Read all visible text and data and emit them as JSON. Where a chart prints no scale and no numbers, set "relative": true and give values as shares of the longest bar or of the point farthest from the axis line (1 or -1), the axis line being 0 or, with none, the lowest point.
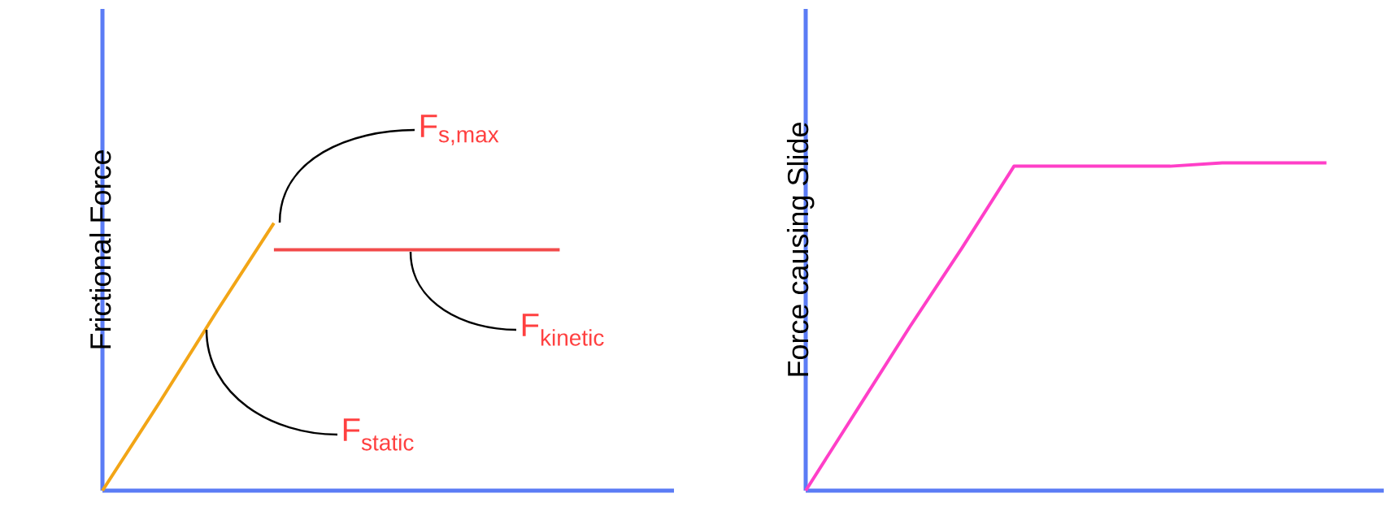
{
  "chart_data": [
    {
      "type": "line",
      "relative": true,
      "ylabel": "Frictional Force",
      "categories": [
        null,
        null,
        null,
        null,
        null,
        null,
        null,
        null,
        null
      ],
      "series": [
        {
          "color": "#f2a516",
          "values": [
            0,
            0.33,
            0.67,
            1,
            null,
            null,
            null,
            null,
            null
          ]
        },
        {
          "color": "#f24b4b",
          "values": [
            null,
            null,
            null,
            0.9,
            0.9,
            0.9,
            0.9,
            0.9,
            0.9
          ]
        }
      ],
      "annotations": [
        "F$_{s,max}$",
        "F$_{kinetic}$",
        "F$_{static}$"
      ]
    },
    {
      "type": "line",
      "relative": true,
      "ylabel": "Force causing Slide",
      "categories": [
        null,
        null,
        null,
        null,
        null,
        null,
        null,
        null,
        null,
        null,
        null
      ],
      "series": [
        {
          "color": "#ff3fc8",
          "values": [
            0,
            0.25,
            0.5,
            0.74,
            0.99,
            0.99,
            0.99,
            0.99,
            1,
            1,
            1
          ]
        }
      ]
    }
  ]
}
